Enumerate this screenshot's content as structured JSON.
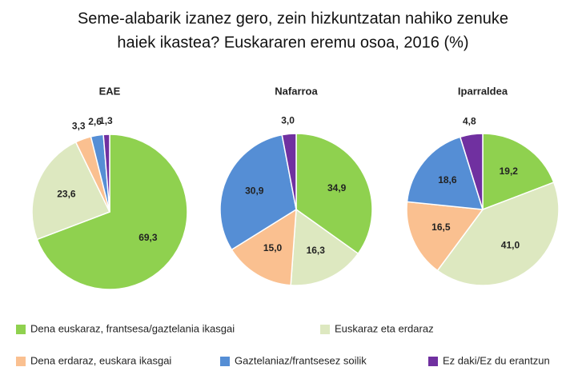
{
  "title": [
    "Seme-alabarik izanez gero, zein hizkuntzatan  nahiko zenuke",
    "haiek ikastea? Euskararen eremu osoa, 2016 (%)"
  ],
  "legend": {
    "categories": [
      "Dena euskaraz, frantsesa/gaztelania ikasgai",
      "Euskaraz eta erdaraz",
      "Dena erdaraz, euskara ikasgai",
      "Gaztelaniaz/frantsesez soilik",
      "Ez daki/Ez du erantzun"
    ],
    "colors": [
      "#8fd14f",
      "#dde8c0",
      "#fac090",
      "#558ed5",
      "#7030a0"
    ]
  },
  "chart_data": [
    {
      "type": "pie",
      "title": "EAE",
      "values": [
        69.3,
        23.6,
        3.3,
        2.6,
        1.3
      ],
      "value_labels": [
        "69,3",
        "23,6",
        "3,3",
        "2,6",
        "1,3"
      ]
    },
    {
      "type": "pie",
      "title": "Nafarroa",
      "values": [
        34.9,
        16.3,
        15.0,
        30.9,
        3.0
      ],
      "value_labels": [
        "34,9",
        "16,3",
        "15,0",
        "30,9",
        "3,0"
      ]
    },
    {
      "type": "pie",
      "title": "Iparraldea",
      "values": [
        19.2,
        41.0,
        16.5,
        18.6,
        4.8
      ],
      "value_labels": [
        "19,2",
        "41,0",
        "16,5",
        "18,6",
        "4,8"
      ]
    }
  ]
}
